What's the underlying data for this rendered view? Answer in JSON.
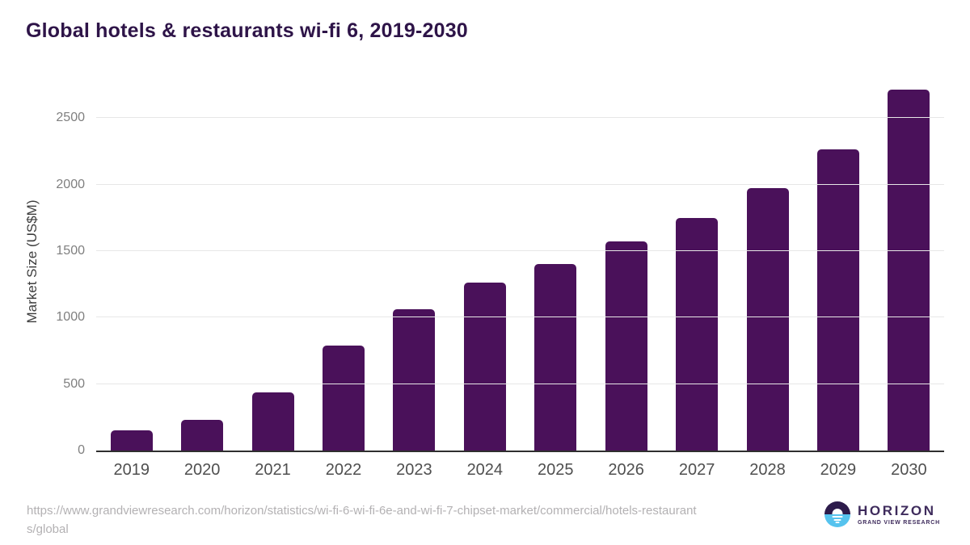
{
  "chart_data": {
    "type": "bar",
    "title": "Global hotels & restaurants wi-fi 6, 2019-2030",
    "categories": [
      "2019",
      "2020",
      "2021",
      "2022",
      "2023",
      "2024",
      "2025",
      "2026",
      "2027",
      "2028",
      "2029",
      "2030"
    ],
    "values": [
      150,
      230,
      435,
      790,
      1065,
      1265,
      1405,
      1575,
      1750,
      1970,
      2265,
      2715
    ],
    "xlabel": "",
    "ylabel": "Market Size (US$M)",
    "yticks": [
      0,
      500,
      1000,
      1500,
      2000,
      2500
    ],
    "ylim": [
      0,
      2780
    ],
    "grid": "horizontal",
    "legend": "none",
    "bar_color": "#4a115a"
  },
  "footer": {
    "source_line1": "https://www.grandviewresearch.com/horizon/statistics/wi-fi-6-wi-fi-6e-and-wi-fi-7-chipset-market/commercial/hotels-restaurant",
    "source_line2": "s/global"
  },
  "logo": {
    "brand": "HORIZON",
    "subtitle": "GRAND VIEW RESEARCH",
    "icon": "horizon-sunset-circle-icon"
  },
  "colors": {
    "title": "#2e1448",
    "bar": "#4a115a",
    "gridline": "#e7e7e7",
    "axis_line": "#2f2f2f",
    "y_tick_label": "#7f7f7f",
    "x_tick_label": "#4f4f4f",
    "axis_title": "#3d3d3d",
    "source_text": "#b3b1b3",
    "logo_dark": "#2d1b4b",
    "logo_blue": "#56c3ee",
    "logo_text": "#3e2b5c",
    "background": "#ffffff"
  }
}
